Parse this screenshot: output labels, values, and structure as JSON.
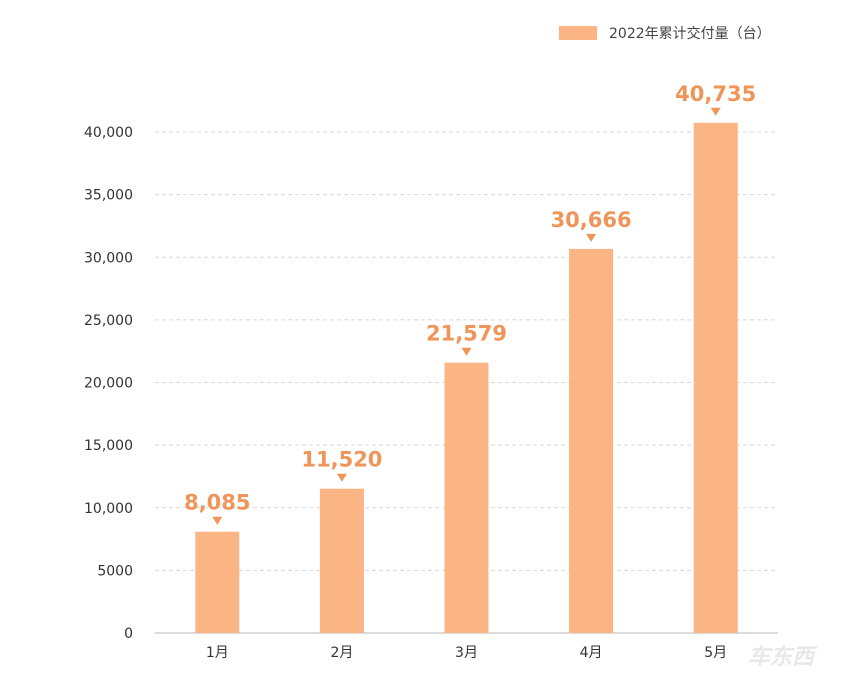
{
  "chart_data": {
    "type": "bar",
    "categories": [
      "1月",
      "2月",
      "3月",
      "4月",
      "5月"
    ],
    "series": [
      {
        "name": "2022年累计交付量（台）",
        "values": [
          8085,
          11520,
          21579,
          30666,
          40735
        ],
        "color": "#fbb483"
      }
    ],
    "data_labels": [
      "8,085",
      "11,520",
      "21,579",
      "30,666",
      "40,735"
    ],
    "ylim": [
      0,
      40000
    ],
    "yticks": [
      0,
      5000,
      10000,
      15000,
      20000,
      25000,
      30000,
      35000,
      40000
    ],
    "ytick_labels": [
      "0",
      "5000",
      "10,000",
      "15,000",
      "20,000",
      "25,000",
      "30,000",
      "35,000",
      "40,000"
    ],
    "grid": "horizontal dashed",
    "legend_position": "top-right",
    "label_color": "#f0955a",
    "title": "",
    "xlabel": "",
    "ylabel": ""
  },
  "watermark": "车东西"
}
